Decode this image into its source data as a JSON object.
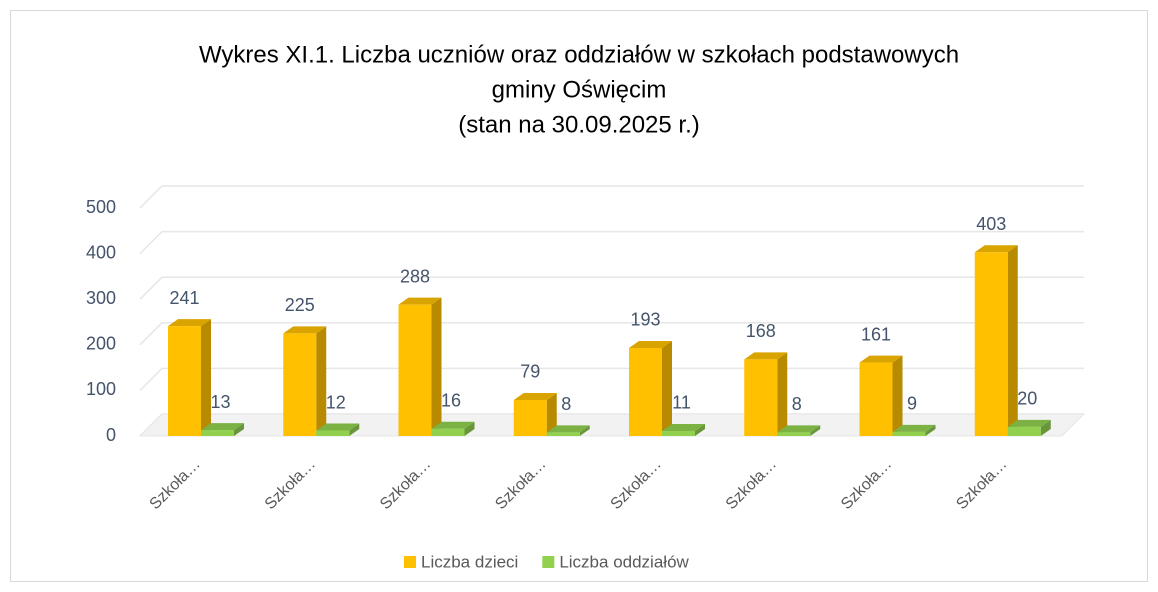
{
  "chart_data": {
    "type": "bar3d",
    "title": [
      "Wykres XI.1. Liczba uczniów oraz oddziałów w szkołach podstawowych",
      "gminy Oświęcim",
      "(stan na 30.09.2025 r.)"
    ],
    "categories": [
      "Szkoła…",
      "Szkoła…",
      "Szkoła…",
      "Szkoła…",
      "Szkoła…",
      "Szkoła…",
      "Szkoła…",
      "Szkoła…"
    ],
    "series": [
      {
        "name": "Liczba dzieci",
        "color": "#ffc000",
        "values": [
          241,
          225,
          288,
          79,
          193,
          168,
          161,
          403
        ]
      },
      {
        "name": "Liczba oddziałów",
        "color": "#92d050",
        "values": [
          13,
          12,
          16,
          8,
          11,
          8,
          9,
          20
        ]
      }
    ],
    "ylim": [
      0,
      500
    ],
    "yticks": [
      0,
      100,
      200,
      300,
      400,
      500
    ],
    "grid": true,
    "legend": "bottom"
  }
}
